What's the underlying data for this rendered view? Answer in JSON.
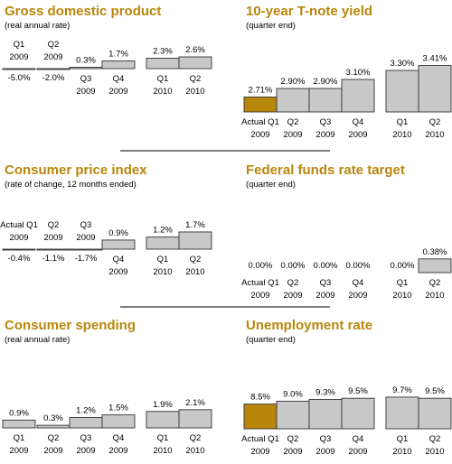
{
  "colors": {
    "title": "#b8860b",
    "bar_forecast": "#c8c8c8",
    "bar_actual": "#b8860b",
    "stroke": "#333333",
    "rule": "#000000"
  },
  "chart_data": [
    {
      "type": "bar",
      "title": "Gross domestic product",
      "subtitle": "(real annual rate)",
      "categories": [
        "Q1 2009",
        "Q2 2009",
        "Q3 2009",
        "Q4 2009",
        "Q1 2010",
        "Q2 2010"
      ],
      "values": [
        -5.0,
        -2.0,
        0.3,
        1.7,
        2.3,
        2.6
      ],
      "value_labels": [
        "-5.0%",
        "-2.0%",
        "0.3%",
        "1.7%",
        "2.3%",
        "2.6%"
      ],
      "category_labels": [
        [
          "Q1",
          "2009"
        ],
        [
          "Q2",
          "2009"
        ],
        [
          "Q3",
          "2009"
        ],
        [
          "Q4",
          "2009"
        ],
        [
          "Q1",
          "2010"
        ],
        [
          "Q2",
          "2010"
        ]
      ],
      "actual_index": null
    },
    {
      "type": "bar",
      "title": "10-year T-note yield",
      "subtitle": "(quarter end)",
      "categories": [
        "Actual Q1 2009",
        "Q2 2009",
        "Q3 2009",
        "Q4 2009",
        "Q1 2010",
        "Q2 2010"
      ],
      "values": [
        2.71,
        2.9,
        2.9,
        3.1,
        3.3,
        3.41
      ],
      "value_labels": [
        "2.71%",
        "2.90%",
        "2.90%",
        "3.10%",
        "3.30%",
        "3.41%"
      ],
      "category_labels": [
        [
          "Actual Q1",
          "2009"
        ],
        [
          "Q2",
          "2009"
        ],
        [
          "Q3",
          "2009"
        ],
        [
          "Q4",
          "2009"
        ],
        [
          "Q1",
          "2010"
        ],
        [
          "Q2",
          "2010"
        ]
      ],
      "actual_index": 0
    },
    {
      "type": "bar",
      "title": "Consumer price index",
      "subtitle": "(rate of change, 12 months ended)",
      "categories": [
        "Actual Q1 2009",
        "Q2 2009",
        "Q3 2009",
        "Q4 2009",
        "Q1 2010",
        "Q2 2010"
      ],
      "values": [
        -0.4,
        -1.1,
        -1.7,
        0.9,
        1.2,
        1.7
      ],
      "value_labels": [
        "-0.4%",
        "-1.1%",
        "-1.7%",
        "0.9%",
        "1.2%",
        "1.7%"
      ],
      "category_labels": [
        [
          "Actual Q1",
          "2009"
        ],
        [
          "Q2",
          "2009"
        ],
        [
          "Q3",
          "2009"
        ],
        [
          "Q4",
          "2009"
        ],
        [
          "Q1",
          "2010"
        ],
        [
          "Q2",
          "2010"
        ]
      ],
      "actual_index": 0
    },
    {
      "type": "bar",
      "title": "Federal funds rate target",
      "subtitle": "(quarter end)",
      "categories": [
        "Actual Q1 2009",
        "Q2 2009",
        "Q3 2009",
        "Q4 2009",
        "Q1 2010",
        "Q2 2010"
      ],
      "values": [
        0.0,
        0.0,
        0.0,
        0.0,
        0.0,
        0.38
      ],
      "value_labels": [
        "0.00%",
        "0.00%",
        "0.00%",
        "0.00%",
        "0.00%",
        "0.38%"
      ],
      "category_labels": [
        [
          "Actual Q1",
          "2009"
        ],
        [
          "Q2",
          "2009"
        ],
        [
          "Q3",
          "2009"
        ],
        [
          "Q4",
          "2009"
        ],
        [
          "Q1",
          "2010"
        ],
        [
          "Q2",
          "2010"
        ]
      ],
      "actual_index": 0
    },
    {
      "type": "bar",
      "title": "Consumer spending",
      "subtitle": "(real annual rate)",
      "categories": [
        "Q1 2009",
        "Q2 2009",
        "Q3 2009",
        "Q4 2009",
        "Q1 2010",
        "Q2 2010"
      ],
      "values": [
        0.9,
        0.3,
        1.2,
        1.5,
        1.9,
        2.1
      ],
      "value_labels": [
        "0.9%",
        "0.3%",
        "1.2%",
        "1.5%",
        "1.9%",
        "2.1%"
      ],
      "category_labels": [
        [
          "Q1",
          "2009"
        ],
        [
          "Q2",
          "2009"
        ],
        [
          "Q3",
          "2009"
        ],
        [
          "Q4",
          "2009"
        ],
        [
          "Q1",
          "2010"
        ],
        [
          "Q2",
          "2010"
        ]
      ],
      "actual_index": null
    },
    {
      "type": "bar",
      "title": "Unemployment rate",
      "subtitle": "(quarter end)",
      "categories": [
        "Actual Q1 2009",
        "Q2 2009",
        "Q3 2009",
        "Q4 2009",
        "Q1 2010",
        "Q2 2010"
      ],
      "values": [
        8.5,
        9.0,
        9.3,
        9.5,
        9.7,
        9.5
      ],
      "value_labels": [
        "8.5%",
        "9.0%",
        "9.3%",
        "9.5%",
        "9.7%",
        "9.5%"
      ],
      "category_labels": [
        [
          "Actual Q1",
          "2009"
        ],
        [
          "Q2",
          "2009"
        ],
        [
          "Q3",
          "2009"
        ],
        [
          "Q4",
          "2009"
        ],
        [
          "Q1",
          "2010"
        ],
        [
          "Q2",
          "2010"
        ]
      ],
      "actual_index": 0
    }
  ]
}
